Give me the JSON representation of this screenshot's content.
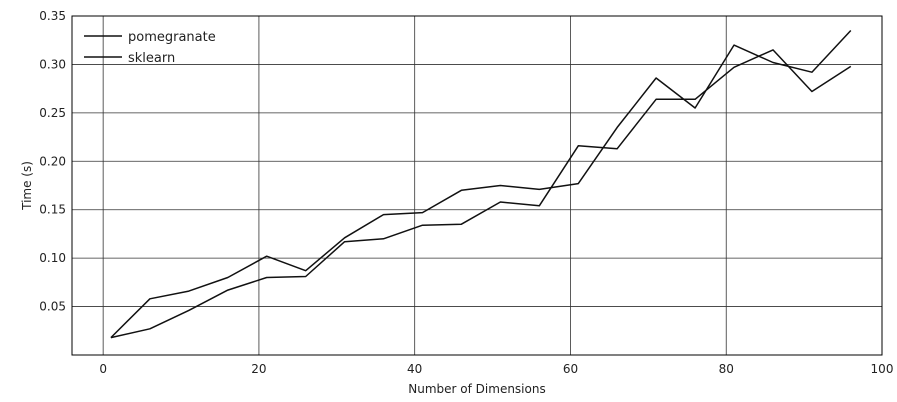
{
  "chart_data": {
    "type": "line",
    "title": "",
    "xlabel": "Number of Dimensions",
    "ylabel": "Time (s)",
    "xlim": [
      -4,
      100
    ],
    "ylim": [
      0.0,
      0.35
    ],
    "xticks": [
      0,
      20,
      40,
      60,
      80,
      100
    ],
    "xtick_labels": [
      "0",
      "20",
      "40",
      "60",
      "80",
      "100"
    ],
    "yticks": [
      0.05,
      0.1,
      0.15,
      0.2,
      0.25,
      0.3,
      0.35
    ],
    "ytick_labels": [
      "0.05",
      "0.10",
      "0.15",
      "0.20",
      "0.25",
      "0.30",
      "0.35"
    ],
    "grid": true,
    "legend_position": "top-left",
    "x": [
      1,
      6,
      11,
      16,
      21,
      26,
      31,
      36,
      41,
      46,
      51,
      56,
      61,
      66,
      71,
      76,
      81,
      86,
      91,
      96
    ],
    "series": [
      {
        "name": "pomegranate",
        "color": "#111111",
        "values": [
          0.018,
          0.027,
          0.046,
          0.067,
          0.08,
          0.081,
          0.117,
          0.12,
          0.134,
          0.135,
          0.158,
          0.154,
          0.216,
          0.213,
          0.264,
          0.264,
          0.297,
          0.315,
          0.272,
          0.298
        ]
      },
      {
        "name": "sklearn",
        "color": "#111111",
        "values": [
          0.018,
          0.058,
          0.066,
          0.08,
          0.102,
          0.087,
          0.121,
          0.145,
          0.147,
          0.17,
          0.175,
          0.171,
          0.177,
          0.235,
          0.286,
          0.255,
          0.32,
          0.302,
          0.292,
          0.335
        ]
      }
    ]
  }
}
